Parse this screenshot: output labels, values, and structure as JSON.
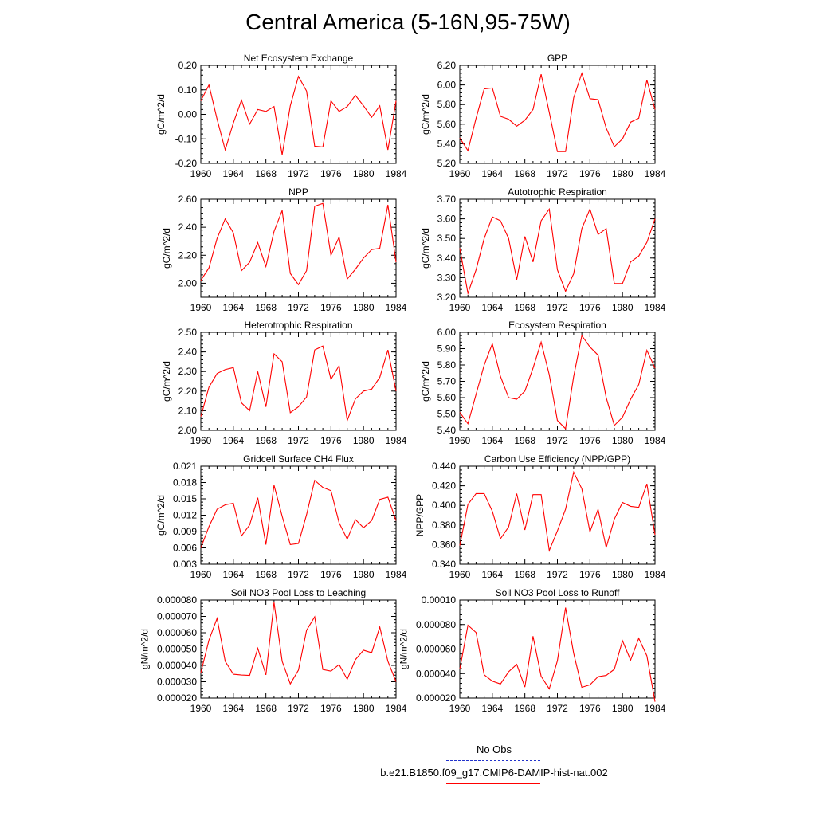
{
  "title": "Central America (5-16N,95-75W)",
  "colors": {
    "model": "#ff0000",
    "obs": "#2233cc"
  },
  "legend": {
    "obs_label": "No Obs",
    "model_label": "b.e21.B1850.f09_g17.CMIP6-DAMIP-hist-nat.002"
  },
  "chart_data": [
    {
      "type": "line",
      "title": "Net Ecosystem Exchange",
      "ylabel": "gC/m^2/d",
      "ylim": [
        -0.2,
        0.2
      ],
      "yticks": [
        "-0.20",
        "-0.10",
        "0.00",
        "0.10",
        "0.20"
      ],
      "xlim": [
        1960,
        1984
      ],
      "xticks": [
        "1960",
        "1964",
        "1968",
        "1972",
        "1976",
        "1980",
        "1984"
      ],
      "x": [
        1960,
        1961,
        1962,
        1963,
        1964,
        1965,
        1966,
        1967,
        1968,
        1969,
        1970,
        1971,
        1972,
        1973,
        1974,
        1975,
        1976,
        1977,
        1978,
        1979,
        1980,
        1981,
        1982,
        1983,
        1984
      ],
      "series": [
        {
          "values": [
            0.055,
            0.12,
            -0.02,
            -0.145,
            -0.035,
            0.058,
            -0.04,
            0.02,
            0.012,
            0.032,
            -0.165,
            0.035,
            0.155,
            0.095,
            -0.13,
            -0.133,
            0.055,
            0.012,
            0.032,
            0.078,
            0.035,
            -0.012,
            0.035,
            -0.145,
            0.055
          ]
        }
      ]
    },
    {
      "type": "line",
      "title": "GPP",
      "ylabel": "gC/m^2/d",
      "ylim": [
        5.2,
        6.2
      ],
      "yticks": [
        "5.20",
        "5.40",
        "5.60",
        "5.80",
        "6.00",
        "6.20"
      ],
      "xlim": [
        1960,
        1984
      ],
      "xticks": [
        "1960",
        "1964",
        "1968",
        "1972",
        "1976",
        "1980",
        "1984"
      ],
      "x": [
        1960,
        1961,
        1962,
        1963,
        1964,
        1965,
        1966,
        1967,
        1968,
        1969,
        1970,
        1971,
        1972,
        1973,
        1974,
        1975,
        1976,
        1977,
        1978,
        1979,
        1980,
        1981,
        1982,
        1983,
        1984
      ],
      "series": [
        {
          "values": [
            5.46,
            5.33,
            5.66,
            5.96,
            5.97,
            5.68,
            5.65,
            5.58,
            5.64,
            5.75,
            6.11,
            5.72,
            5.32,
            5.32,
            5.87,
            6.12,
            5.86,
            5.85,
            5.56,
            5.37,
            5.45,
            5.62,
            5.66,
            6.05,
            5.75
          ]
        }
      ]
    },
    {
      "type": "line",
      "title": "NPP",
      "ylabel": "gC/m^2/d",
      "ylim": [
        1.9,
        2.6
      ],
      "yticks": [
        "2.00",
        "2.20",
        "2.40",
        "2.60"
      ],
      "ytick_values": [
        2.0,
        2.2,
        2.4,
        2.6
      ],
      "xlim": [
        1960,
        1984
      ],
      "xticks": [
        "1960",
        "1964",
        "1968",
        "1972",
        "1976",
        "1980",
        "1984"
      ],
      "x": [
        1960,
        1961,
        1962,
        1963,
        1964,
        1965,
        1966,
        1967,
        1968,
        1969,
        1970,
        1971,
        1972,
        1973,
        1974,
        1975,
        1976,
        1977,
        1978,
        1979,
        1980,
        1981,
        1982,
        1983,
        1984
      ],
      "series": [
        {
          "values": [
            2.02,
            2.11,
            2.32,
            2.46,
            2.36,
            2.09,
            2.15,
            2.29,
            2.12,
            2.37,
            2.52,
            2.07,
            1.99,
            2.09,
            2.55,
            2.57,
            2.2,
            2.33,
            2.03,
            2.1,
            2.18,
            2.24,
            2.25,
            2.56,
            2.15
          ]
        }
      ]
    },
    {
      "type": "line",
      "title": "Autotrophic Respiration",
      "ylabel": "gC/m^2/d",
      "ylim": [
        3.2,
        3.7
      ],
      "yticks": [
        "3.20",
        "3.30",
        "3.40",
        "3.50",
        "3.60",
        "3.70"
      ],
      "xlim": [
        1960,
        1984
      ],
      "xticks": [
        "1960",
        "1964",
        "1968",
        "1972",
        "1976",
        "1980",
        "1984"
      ],
      "x": [
        1960,
        1961,
        1962,
        1963,
        1964,
        1965,
        1966,
        1967,
        1968,
        1969,
        1970,
        1971,
        1972,
        1973,
        1974,
        1975,
        1976,
        1977,
        1978,
        1979,
        1980,
        1981,
        1982,
        1983,
        1984
      ],
      "series": [
        {
          "values": [
            3.45,
            3.22,
            3.34,
            3.5,
            3.61,
            3.59,
            3.5,
            3.29,
            3.51,
            3.38,
            3.59,
            3.65,
            3.34,
            3.23,
            3.32,
            3.55,
            3.65,
            3.52,
            3.55,
            3.27,
            3.27,
            3.38,
            3.41,
            3.48,
            3.6
          ]
        }
      ]
    },
    {
      "type": "line",
      "title": "Heterotrophic Respiration",
      "ylabel": "gC/m^2/d",
      "ylim": [
        2.0,
        2.5
      ],
      "yticks": [
        "2.00",
        "2.10",
        "2.20",
        "2.30",
        "2.40",
        "2.50"
      ],
      "xlim": [
        1960,
        1984
      ],
      "xticks": [
        "1960",
        "1964",
        "1968",
        "1972",
        "1976",
        "1980",
        "1984"
      ],
      "x": [
        1960,
        1961,
        1962,
        1963,
        1964,
        1965,
        1966,
        1967,
        1968,
        1969,
        1970,
        1971,
        1972,
        1973,
        1974,
        1975,
        1976,
        1977,
        1978,
        1979,
        1980,
        1981,
        1982,
        1983,
        1984
      ],
      "series": [
        {
          "values": [
            2.07,
            2.22,
            2.29,
            2.31,
            2.32,
            2.14,
            2.1,
            2.3,
            2.12,
            2.39,
            2.35,
            2.09,
            2.12,
            2.17,
            2.41,
            2.43,
            2.26,
            2.33,
            2.05,
            2.16,
            2.2,
            2.21,
            2.27,
            2.41,
            2.2
          ]
        }
      ]
    },
    {
      "type": "line",
      "title": "Ecosystem Respiration",
      "ylabel": "gC/m^2/d",
      "ylim": [
        5.4,
        6.0
      ],
      "yticks": [
        "5.40",
        "5.50",
        "5.60",
        "5.70",
        "5.80",
        "5.90",
        "6.00"
      ],
      "xlim": [
        1960,
        1984
      ],
      "xticks": [
        "1960",
        "1964",
        "1968",
        "1972",
        "1976",
        "1980",
        "1984"
      ],
      "x": [
        1960,
        1961,
        1962,
        1963,
        1964,
        1965,
        1966,
        1967,
        1968,
        1969,
        1970,
        1971,
        1972,
        1973,
        1974,
        1975,
        1976,
        1977,
        1978,
        1979,
        1980,
        1981,
        1982,
        1983,
        1984
      ],
      "series": [
        {
          "values": [
            5.51,
            5.44,
            5.62,
            5.8,
            5.93,
            5.73,
            5.6,
            5.59,
            5.64,
            5.78,
            5.94,
            5.74,
            5.46,
            5.41,
            5.73,
            5.98,
            5.91,
            5.86,
            5.6,
            5.43,
            5.48,
            5.59,
            5.68,
            5.89,
            5.78
          ]
        }
      ]
    },
    {
      "type": "line",
      "title": "Gridcell Surface CH4 Flux",
      "ylabel": "gC/m^2/d",
      "ylim": [
        0.003,
        0.021
      ],
      "yticks": [
        "0.003",
        "0.006",
        "0.009",
        "0.012",
        "0.015",
        "0.018",
        "0.021"
      ],
      "xlim": [
        1960,
        1984
      ],
      "xticks": [
        "1960",
        "1964",
        "1968",
        "1972",
        "1976",
        "1980",
        "1984"
      ],
      "x": [
        1960,
        1961,
        1962,
        1963,
        1964,
        1965,
        1966,
        1967,
        1968,
        1969,
        1970,
        1971,
        1972,
        1973,
        1974,
        1975,
        1976,
        1977,
        1978,
        1979,
        1980,
        1981,
        1982,
        1983,
        1984
      ],
      "series": [
        {
          "values": [
            0.006,
            0.0099,
            0.0131,
            0.0139,
            0.0142,
            0.0082,
            0.0102,
            0.0152,
            0.0066,
            0.0175,
            0.0118,
            0.0066,
            0.0068,
            0.0121,
            0.0184,
            0.0171,
            0.0165,
            0.0106,
            0.0076,
            0.0112,
            0.0097,
            0.011,
            0.0149,
            0.0153,
            0.011
          ]
        }
      ]
    },
    {
      "type": "line",
      "title": "Carbon Use Efficiency (NPP/GPP)",
      "ylabel": "NPP/GPP",
      "ylim": [
        0.34,
        0.44
      ],
      "yticks": [
        "0.340",
        "0.360",
        "0.380",
        "0.400",
        "0.420",
        "0.440"
      ],
      "xlim": [
        1960,
        1984
      ],
      "xticks": [
        "1960",
        "1964",
        "1968",
        "1972",
        "1976",
        "1980",
        "1984"
      ],
      "x": [
        1960,
        1961,
        1962,
        1963,
        1964,
        1965,
        1966,
        1967,
        1968,
        1969,
        1970,
        1971,
        1972,
        1973,
        1974,
        1975,
        1976,
        1977,
        1978,
        1979,
        1980,
        1981,
        1982,
        1983,
        1984
      ],
      "series": [
        {
          "values": [
            0.359,
            0.401,
            0.412,
            0.412,
            0.394,
            0.366,
            0.378,
            0.412,
            0.375,
            0.411,
            0.411,
            0.354,
            0.374,
            0.396,
            0.434,
            0.417,
            0.373,
            0.396,
            0.357,
            0.386,
            0.403,
            0.399,
            0.398,
            0.422,
            0.37
          ]
        }
      ]
    },
    {
      "type": "line",
      "title": "Soil NO3 Pool Loss to Leaching",
      "ylabel": "gN/m^2/d",
      "ylim": [
        2e-05,
        8e-05
      ],
      "yticks": [
        "0.000020",
        "0.000030",
        "0.000040",
        "0.000050",
        "0.000060",
        "0.000070",
        "0.000080"
      ],
      "xlim": [
        1960,
        1984
      ],
      "xticks": [
        "1960",
        "1964",
        "1968",
        "1972",
        "1976",
        "1980",
        "1984"
      ],
      "x": [
        1960,
        1961,
        1962,
        1963,
        1964,
        1965,
        1966,
        1967,
        1968,
        1969,
        1970,
        1971,
        1972,
        1973,
        1974,
        1975,
        1976,
        1977,
        1978,
        1979,
        1980,
        1981,
        1982,
        1983,
        1984
      ],
      "series": [
        {
          "values": [
            3.55e-05,
            5.55e-05,
            6.88e-05,
            4.25e-05,
            3.46e-05,
            3.41e-05,
            3.39e-05,
            5.05e-05,
            3.42e-05,
            7.85e-05,
            4.25e-05,
            2.87e-05,
            3.71e-05,
            6.15e-05,
            6.98e-05,
            3.75e-05,
            3.65e-05,
            4.05e-05,
            3.15e-05,
            4.35e-05,
            4.93e-05,
            4.78e-05,
            6.35e-05,
            4.25e-05,
            3e-05
          ]
        }
      ]
    },
    {
      "type": "line",
      "title": "Soil NO3 Pool Loss to Runoff",
      "ylabel": "gN/m^2/d",
      "ylim": [
        2e-05,
        0.0001
      ],
      "yticks": [
        "0.000020",
        "0.000040",
        "0.000060",
        "0.000080",
        "0.00010"
      ],
      "xlim": [
        1960,
        1984
      ],
      "xticks": [
        "1960",
        "1964",
        "1968",
        "1972",
        "1976",
        "1980",
        "1984"
      ],
      "x": [
        1960,
        1961,
        1962,
        1963,
        1964,
        1965,
        1966,
        1967,
        1968,
        1969,
        1970,
        1971,
        1972,
        1973,
        1974,
        1975,
        1976,
        1977,
        1978,
        1979,
        1980,
        1981,
        1982,
        1983,
        1984
      ],
      "series": [
        {
          "values": [
            4.35e-05,
            7.95e-05,
            7.35e-05,
            3.9e-05,
            3.38e-05,
            3.15e-05,
            4.15e-05,
            4.75e-05,
            2.9e-05,
            7.05e-05,
            3.78e-05,
            2.75e-05,
            5.05e-05,
            9.38e-05,
            5.65e-05,
            2.88e-05,
            3.08e-05,
            3.75e-05,
            3.85e-05,
            4.35e-05,
            6.68e-05,
            5.1e-05,
            6.88e-05,
            5.45e-05,
            1.7e-05
          ]
        }
      ]
    }
  ]
}
